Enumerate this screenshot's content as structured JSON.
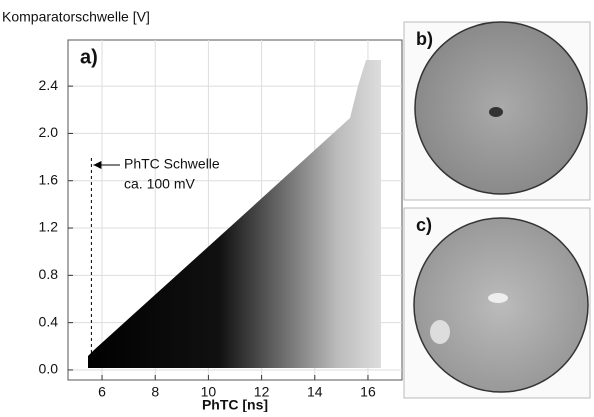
{
  "chart_data": {
    "type": "image",
    "y_label": "Komparatorschwelle [V]",
    "x_label": "PhTC [ns]",
    "panel_label": "a)",
    "xlim": [
      4.72,
      17.28
    ],
    "ylim": [
      -0.085,
      2.79
    ],
    "xticks": [
      6,
      8,
      10,
      12,
      14,
      16
    ],
    "yticks": [
      {
        "value": 0,
        "label": "0.0"
      },
      0.4,
      0.8,
      1.2,
      1.6,
      {
        "value": 2,
        "label": "2.0"
      },
      2.4
    ],
    "grid": true,
    "annotation": {
      "lines": [
        "PhTC Schwelle",
        "ca. 100 mV"
      ],
      "x": 5.6
    }
  },
  "panels": [
    "b)",
    "c)"
  ]
}
